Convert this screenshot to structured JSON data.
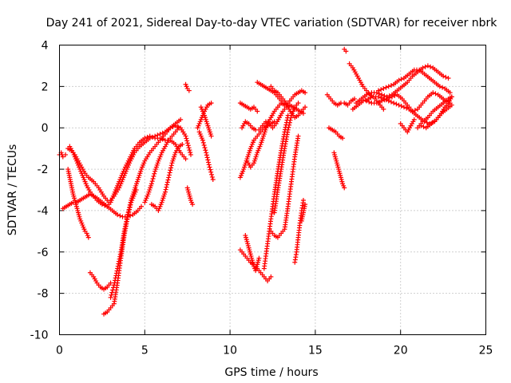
{
  "chart_data": {
    "type": "scatter",
    "title": "Day 241 of 2021, Sidereal Day-to-day VTEC variation (SDTVAR) for receiver nbrk",
    "xlabel": "GPS time / hours",
    "ylabel": "SDTVAR / TECUs",
    "xlim": [
      0,
      25
    ],
    "ylim": [
      -10,
      4
    ],
    "xticks": [
      "0",
      "5",
      "10",
      "15",
      "20",
      "25"
    ],
    "yticks": [
      "-10",
      "-8",
      "-6",
      "-4",
      "-2",
      "0",
      "2",
      "4"
    ],
    "grid": true,
    "marker": "plus",
    "colors": {
      "series": "#ff0000",
      "grid": "#a0a0a0",
      "frame": "#000000"
    },
    "series": [
      {
        "x": [
          0.0,
          0.1,
          0.2,
          0.35
        ],
        "y": [
          -1.3,
          -1.2,
          -1.4,
          -1.3
        ]
      },
      {
        "x": [
          0.2,
          0.4,
          0.6,
          0.8,
          1.0,
          1.2,
          1.4,
          1.6,
          1.8,
          2.0,
          2.2,
          2.5,
          2.8,
          3.1,
          3.4,
          3.7,
          4.0,
          4.3,
          4.6,
          4.8
        ],
        "y": [
          -3.9,
          -3.8,
          -3.7,
          -3.6,
          -3.6,
          -3.5,
          -3.4,
          -3.3,
          -3.2,
          -3.3,
          -3.4,
          -3.6,
          -3.8,
          -4.0,
          -4.2,
          -4.3,
          -4.3,
          -4.2,
          -4.0,
          -3.8
        ]
      },
      {
        "x": [
          0.5,
          0.7,
          0.9,
          1.1,
          1.3,
          1.5,
          1.7,
          2.0,
          2.3,
          2.6,
          2.9,
          3.2,
          3.5,
          3.8,
          4.1,
          4.4,
          4.7,
          5.0,
          5.3,
          5.6,
          5.9,
          6.2,
          6.5,
          6.8,
          7.1
        ],
        "y": [
          -1.0,
          -1.1,
          -1.3,
          -1.6,
          -1.9,
          -2.2,
          -2.4,
          -2.6,
          -2.9,
          -3.3,
          -3.6,
          -3.3,
          -2.9,
          -2.3,
          -1.7,
          -1.2,
          -0.9,
          -0.7,
          -0.5,
          -0.4,
          -0.3,
          -0.2,
          0.0,
          0.2,
          0.4
        ]
      },
      {
        "x": [
          0.6,
          0.8,
          1.0,
          1.2,
          1.4,
          1.6,
          1.8,
          2.0,
          2.2,
          2.5,
          2.8,
          3.0,
          3.2,
          3.5,
          3.8,
          4.1,
          4.4,
          4.7,
          5.0,
          5.3,
          5.6,
          5.9,
          6.2,
          6.5,
          6.8,
          7.1,
          7.4
        ],
        "y": [
          -0.9,
          -1.2,
          -1.6,
          -2.0,
          -2.4,
          -2.8,
          -3.1,
          -3.3,
          -3.5,
          -3.7,
          -3.8,
          -3.6,
          -3.2,
          -2.6,
          -2.0,
          -1.5,
          -1.0,
          -0.7,
          -0.5,
          -0.4,
          -0.5,
          -0.5,
          -0.6,
          -0.6,
          -0.8,
          -1.2,
          -1.5
        ]
      },
      {
        "x": [
          0.5,
          0.6,
          0.7,
          0.8,
          0.9,
          1.0,
          1.1,
          1.2,
          1.3,
          1.4,
          1.5,
          1.6,
          1.7
        ],
        "y": [
          -2.0,
          -2.4,
          -2.8,
          -3.2,
          -3.5,
          -3.8,
          -4.1,
          -4.4,
          -4.6,
          -4.8,
          -5.0,
          -5.1,
          -5.3
        ]
      },
      {
        "x": [
          1.8,
          2.0,
          2.2,
          2.4,
          2.6,
          2.8,
          3.0
        ],
        "y": [
          -7.0,
          -7.2,
          -7.5,
          -7.7,
          -7.8,
          -7.7,
          -7.5
        ]
      },
      {
        "x": [
          2.6,
          2.8,
          3.0,
          3.2,
          3.4,
          3.6,
          3.8,
          4.0,
          4.2,
          4.5
        ],
        "y": [
          -9.0,
          -8.9,
          -8.7,
          -8.5,
          -7.5,
          -6.3,
          -5.2,
          -4.3,
          -3.6,
          -3.0
        ]
      },
      {
        "x": [
          3.0,
          3.2,
          3.4,
          3.6,
          3.8,
          4.0,
          4.2,
          4.4,
          4.6,
          4.8,
          5.0,
          5.3,
          5.6,
          5.9,
          6.2,
          6.5,
          6.8,
          7.1,
          7.4,
          7.7
        ],
        "y": [
          -8.2,
          -7.6,
          -6.8,
          -6.0,
          -5.0,
          -4.2,
          -3.5,
          -3.0,
          -2.5,
          -2.0,
          -1.6,
          -1.2,
          -0.9,
          -0.6,
          -0.3,
          0.0,
          0.1,
          0.0,
          -0.4,
          -1.3
        ]
      },
      {
        "x": [
          5.0,
          5.2,
          5.4,
          5.6,
          5.8,
          6.0,
          6.2,
          6.4,
          6.6,
          6.8,
          7.0
        ],
        "y": [
          -3.6,
          -3.2,
          -2.7,
          -2.1,
          -1.6,
          -1.2,
          -0.9,
          -0.6,
          -0.4,
          -0.2,
          0.0
        ]
      },
      {
        "x": [
          5.4,
          5.6,
          5.8,
          6.0,
          6.2,
          6.4,
          6.6,
          6.8,
          7.0,
          7.2
        ],
        "y": [
          -3.7,
          -3.8,
          -4.0,
          -3.6,
          -3.1,
          -2.4,
          -1.7,
          -1.2,
          -0.9,
          -0.8
        ]
      },
      {
        "x": [
          7.4,
          7.5,
          7.6
        ],
        "y": [
          2.1,
          1.9,
          1.8
        ]
      },
      {
        "x": [
          7.5,
          7.6,
          7.7,
          7.8
        ],
        "y": [
          -2.9,
          -3.2,
          -3.5,
          -3.7
        ]
      },
      {
        "x": [
          8.1,
          8.3,
          8.5,
          8.7,
          8.9
        ],
        "y": [
          0.0,
          0.4,
          0.8,
          1.1,
          1.2
        ]
      },
      {
        "x": [
          8.2,
          8.4,
          8.6,
          8.8,
          9.0
        ],
        "y": [
          -0.2,
          -0.6,
          -1.2,
          -1.9,
          -2.5
        ]
      },
      {
        "x": [
          8.3,
          8.5,
          8.7,
          8.9
        ],
        "y": [
          1.0,
          0.6,
          0.1,
          -0.4
        ]
      },
      {
        "x": [
          10.6,
          10.8,
          11.0,
          11.2,
          11.4,
          11.6
        ],
        "y": [
          1.2,
          1.1,
          1.0,
          0.9,
          1.0,
          0.8
        ]
      },
      {
        "x": [
          10.7,
          10.9,
          11.1,
          11.3,
          11.5,
          11.7,
          11.9,
          12.1,
          12.3,
          12.5,
          12.7,
          12.9,
          13.1,
          13.3,
          13.5,
          13.7,
          13.9,
          14.1,
          14.3
        ],
        "y": [
          0.0,
          0.3,
          0.2,
          0.0,
          -0.1,
          -0.1,
          0.1,
          0.3,
          0.2,
          0.0,
          0.2,
          0.5,
          0.8,
          1.0,
          1.1,
          1.0,
          0.9,
          0.8,
          0.7
        ]
      },
      {
        "x": [
          11.6,
          11.8,
          12.0,
          12.2,
          12.4,
          12.6,
          12.8,
          13.0,
          13.2,
          13.4,
          13.6,
          13.8,
          14.0,
          14.2,
          14.4
        ],
        "y": [
          2.2,
          2.1,
          2.0,
          1.9,
          1.8,
          1.7,
          1.5,
          1.3,
          1.1,
          1.2,
          1.4,
          1.6,
          1.7,
          1.8,
          1.7
        ]
      },
      {
        "x": [
          12.4,
          12.6,
          12.8,
          13.0,
          13.2,
          13.4,
          13.6,
          13.8,
          14.0,
          14.2,
          14.4
        ],
        "y": [
          2.0,
          1.8,
          1.7,
          1.5,
          1.3,
          1.0,
          0.7,
          0.5,
          0.6,
          0.8,
          1.0
        ]
      },
      {
        "x": [
          10.6,
          10.8,
          11.0,
          11.2,
          11.4,
          11.6,
          11.8,
          12.0,
          12.2,
          12.4
        ],
        "y": [
          -5.9,
          -6.1,
          -6.3,
          -6.5,
          -6.6,
          -6.8,
          -7.0,
          -7.2,
          -7.4,
          -7.2
        ]
      },
      {
        "x": [
          10.9,
          11.0,
          11.1,
          11.2,
          11.3,
          11.4,
          11.5,
          11.6,
          11.7
        ],
        "y": [
          -5.2,
          -5.5,
          -5.8,
          -6.1,
          -6.4,
          -6.7,
          -6.9,
          -6.6,
          -6.3
        ]
      },
      {
        "x": [
          10.6,
          10.8,
          11.0,
          11.2,
          11.4,
          11.6,
          11.8,
          12.0,
          12.2,
          12.4,
          12.6
        ],
        "y": [
          -2.4,
          -2.0,
          -1.5,
          -1.0,
          -0.6,
          -0.4,
          -0.2,
          0.0,
          0.1,
          0.2,
          0.3
        ]
      },
      {
        "x": [
          11.0,
          11.2,
          11.4,
          11.6,
          11.8,
          12.0,
          12.2,
          12.4,
          12.6,
          12.8,
          13.0,
          13.2
        ],
        "y": [
          -1.6,
          -1.9,
          -1.7,
          -1.2,
          -0.8,
          -0.3,
          0.2,
          0.5,
          0.8,
          1.0,
          1.2,
          1.1
        ]
      },
      {
        "x": [
          12.0,
          12.2,
          12.4,
          12.6,
          12.8,
          13.0,
          13.2,
          13.4
        ],
        "y": [
          -6.8,
          -5.6,
          -4.4,
          -3.2,
          -2.1,
          -1.1,
          -0.2,
          0.6
        ]
      },
      {
        "x": [
          12.4,
          12.6,
          12.8,
          13.0,
          13.2,
          13.4,
          13.6,
          13.8,
          14.0
        ],
        "y": [
          -5.0,
          -5.2,
          -5.3,
          -5.1,
          -4.9,
          -3.8,
          -2.6,
          -1.4,
          -0.4
        ]
      },
      {
        "x": [
          12.6,
          12.8,
          13.0,
          13.2,
          13.4,
          13.6,
          13.8,
          14.0
        ],
        "y": [
          -4.1,
          -3.0,
          -2.0,
          -1.0,
          -0.1,
          0.6,
          1.0,
          1.2
        ]
      },
      {
        "x": [
          13.8,
          13.9,
          14.0,
          14.1,
          14.2,
          14.3
        ],
        "y": [
          -6.5,
          -6.0,
          -5.3,
          -4.6,
          -4.0,
          -3.5
        ]
      },
      {
        "x": [
          14.2,
          14.3,
          14.4
        ],
        "y": [
          -4.5,
          -4.1,
          -3.7
        ]
      },
      {
        "x": [
          15.7,
          15.9,
          16.1,
          16.3,
          16.5,
          16.7,
          16.9,
          17.1,
          17.3
        ],
        "y": [
          1.6,
          1.4,
          1.2,
          1.1,
          1.2,
          1.2,
          1.1,
          1.3,
          1.4
        ]
      },
      {
        "x": [
          15.8,
          16.0,
          16.2,
          16.4,
          16.6
        ],
        "y": [
          0.0,
          -0.1,
          -0.2,
          -0.4,
          -0.5
        ]
      },
      {
        "x": [
          16.1,
          16.2,
          16.3,
          16.4,
          16.5,
          16.6,
          16.7
        ],
        "y": [
          -1.2,
          -1.5,
          -1.8,
          -2.1,
          -2.4,
          -2.7,
          -2.9
        ]
      },
      {
        "x": [
          16.7,
          16.8
        ],
        "y": [
          3.8,
          3.7
        ]
      },
      {
        "x": [
          17.0,
          17.2,
          17.4,
          17.6,
          17.8,
          18.0,
          18.2,
          18.4,
          18.6,
          18.8,
          19.0
        ],
        "y": [
          3.1,
          2.9,
          2.6,
          2.3,
          2.0,
          1.8,
          1.6,
          1.5,
          1.3,
          1.1,
          0.9
        ]
      },
      {
        "x": [
          17.2,
          17.5,
          17.8,
          18.1,
          18.4,
          18.7,
          19.0,
          19.3,
          19.6,
          19.9,
          20.2,
          20.5,
          20.8,
          21.1,
          21.4,
          21.7,
          22.0,
          22.3,
          22.6,
          22.9
        ],
        "y": [
          0.9,
          1.1,
          1.3,
          1.4,
          1.5,
          1.5,
          1.4,
          1.3,
          1.2,
          1.1,
          1.0,
          0.9,
          0.7,
          0.5,
          0.3,
          0.2,
          0.3,
          0.6,
          1.0,
          1.2
        ]
      },
      {
        "x": [
          17.4,
          17.7,
          18.0,
          18.3,
          18.6,
          18.9,
          19.2,
          19.5,
          19.8,
          20.1,
          20.4,
          20.7,
          21.0,
          21.3,
          21.6,
          21.9,
          22.2,
          22.5,
          22.8
        ],
        "y": [
          1.2,
          1.4,
          1.6,
          1.7,
          1.7,
          1.6,
          1.5,
          1.6,
          1.8,
          2.0,
          2.2,
          2.5,
          2.7,
          2.9,
          3.0,
          2.9,
          2.7,
          2.5,
          2.4
        ]
      },
      {
        "x": [
          18.0,
          18.3,
          18.6,
          18.9,
          19.2,
          19.5,
          19.8,
          20.1,
          20.4,
          20.7,
          21.0,
          21.3,
          21.6,
          21.9,
          22.2,
          22.5,
          22.8,
          23.0
        ],
        "y": [
          1.3,
          1.2,
          1.2,
          1.3,
          1.4,
          1.5,
          1.6,
          1.4,
          1.1,
          0.8,
          0.9,
          1.2,
          1.5,
          1.7,
          1.6,
          1.4,
          1.2,
          1.5
        ]
      },
      {
        "x": [
          18.7,
          19.0,
          19.3,
          19.6,
          19.9,
          20.2,
          20.5,
          20.8,
          21.1,
          21.4,
          21.7,
          22.0,
          22.3,
          22.6,
          22.9
        ],
        "y": [
          1.8,
          1.9,
          2.0,
          2.1,
          2.3,
          2.4,
          2.6,
          2.8,
          2.8,
          2.6,
          2.4,
          2.2,
          2.0,
          1.9,
          1.7
        ]
      },
      {
        "x": [
          20.0,
          20.2,
          20.4,
          20.6,
          20.8
        ],
        "y": [
          0.2,
          0.0,
          -0.2,
          0.1,
          0.4
        ]
      },
      {
        "x": [
          21.0,
          21.3,
          21.6,
          21.9,
          22.2,
          22.5,
          22.8,
          23.0
        ],
        "y": [
          0.0,
          0.3,
          0.5,
          0.8,
          1.0,
          1.2,
          1.4,
          1.5
        ]
      },
      {
        "x": [
          21.2,
          21.5,
          21.8,
          22.1,
          22.4,
          22.7,
          23.0
        ],
        "y": [
          0.1,
          0.0,
          0.2,
          0.4,
          0.7,
          0.9,
          1.1
        ]
      }
    ]
  }
}
